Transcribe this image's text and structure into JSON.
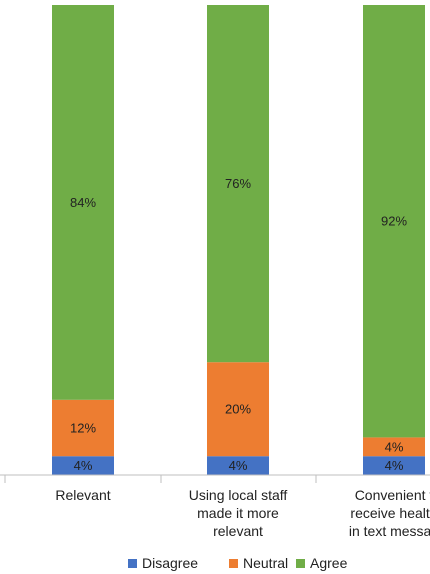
{
  "chart_data": {
    "type": "bar",
    "stacked": true,
    "categories": [
      [
        "Relevant"
      ],
      [
        "Using local staff",
        "made it more",
        "relevant"
      ],
      [
        "Convenient t",
        "receive health",
        "in text messag"
      ]
    ],
    "series": [
      {
        "name": "Disagree",
        "values": [
          4,
          4,
          4
        ]
      },
      {
        "name": "Neutral",
        "values": [
          12,
          20,
          4
        ]
      },
      {
        "name": "Agree",
        "values": [
          84,
          76,
          92
        ]
      }
    ],
    "data_labels": [
      [
        "4%",
        "4%",
        "4%"
      ],
      [
        "12%",
        "20%",
        "4%"
      ],
      [
        "84%",
        "76%",
        "92%"
      ]
    ],
    "ylim": [
      0,
      100
    ],
    "grid": false,
    "legend_position": "bottom",
    "colors": [
      "#4472C4",
      "#ED7D31",
      "#70AD47"
    ]
  }
}
